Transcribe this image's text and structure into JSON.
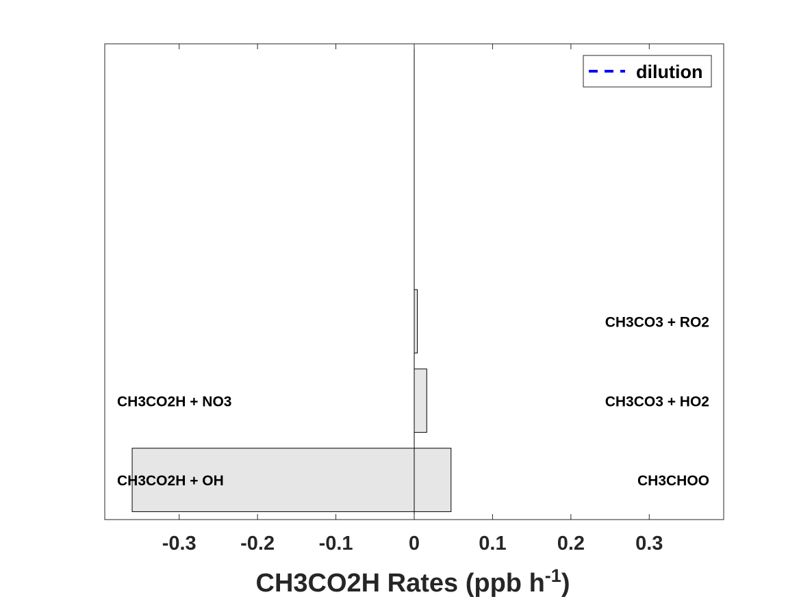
{
  "chart_data": {
    "type": "bar",
    "orientation": "horizontal",
    "stacked": true,
    "xlabel": "CH3CO2H Rates (ppb h",
    "xlabel_superscript": "-1",
    "xlabel_close": ")",
    "xlim": [
      -0.395,
      0.395
    ],
    "xticks": [
      -0.3,
      -0.2,
      -0.1,
      0,
      0.1,
      0.2,
      0.3
    ],
    "xtick_labels": [
      "-0.3",
      "-0.2",
      "-0.1",
      "0",
      "0.1",
      "0.2",
      "0.3"
    ],
    "ylim": [
      0.5,
      6.5
    ],
    "bars": [
      {
        "position": 1,
        "negative_value": -0.36,
        "positive_value": 0.047,
        "negative_label": "CH3CO2H + OH",
        "positive_label": "CH3CHOO"
      },
      {
        "position": 2,
        "negative_value": 0,
        "positive_value": 0.016,
        "negative_label": "CH3CO2H + NO3",
        "positive_label": "CH3CO3 + HO2"
      },
      {
        "position": 3,
        "negative_value": 0,
        "positive_value": 0.004,
        "negative_label": "",
        "positive_label": "CH3CO3 + RO2"
      }
    ],
    "bar_fill": "#e6e6e6",
    "bar_edge": "#000000",
    "legend": {
      "placement": "top-right",
      "entries": [
        {
          "label": "dilution",
          "color": "#0000ff",
          "style": "dashed"
        }
      ]
    },
    "grid": false
  }
}
